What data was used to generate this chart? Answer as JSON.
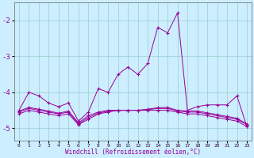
{
  "background_color": "#cceeff",
  "grid_color": "#99cccc",
  "line_color": "#990099",
  "xlim": [
    -0.5,
    23.5
  ],
  "ylim": [
    -5.35,
    -1.5
  ],
  "yticks": [
    -5,
    -4,
    -3,
    -2
  ],
  "xlabel": "Windchill (Refroidissement éolien,°C)",
  "hours": [
    0,
    1,
    2,
    3,
    4,
    5,
    6,
    7,
    8,
    9,
    10,
    11,
    12,
    13,
    14,
    15,
    16,
    17,
    18,
    19,
    20,
    21,
    22,
    23
  ],
  "line1": [
    -4.5,
    -4.0,
    -4.1,
    -4.3,
    -4.4,
    -4.3,
    -4.8,
    -4.55,
    -3.9,
    -4.0,
    -3.5,
    -3.3,
    -3.5,
    -3.2,
    -2.2,
    -2.35,
    -1.8,
    -4.5,
    -4.4,
    -4.35,
    -4.35,
    -4.35,
    -4.1,
    -4.95
  ],
  "line2": [
    -4.6,
    -4.5,
    -4.55,
    -4.6,
    -4.65,
    -4.6,
    -4.9,
    -4.75,
    -4.6,
    -4.55,
    -4.5,
    -4.5,
    -4.5,
    -4.5,
    -4.5,
    -4.5,
    -4.55,
    -4.6,
    -4.6,
    -4.65,
    -4.7,
    -4.75,
    -4.8,
    -4.95
  ],
  "line3": [
    -4.55,
    -4.45,
    -4.5,
    -4.55,
    -4.6,
    -4.55,
    -4.88,
    -4.7,
    -4.58,
    -4.52,
    -4.5,
    -4.5,
    -4.5,
    -4.48,
    -4.45,
    -4.45,
    -4.52,
    -4.55,
    -4.55,
    -4.6,
    -4.65,
    -4.7,
    -4.75,
    -4.9
  ],
  "line4": [
    -4.52,
    -4.42,
    -4.47,
    -4.52,
    -4.58,
    -4.52,
    -4.85,
    -4.65,
    -4.55,
    -4.5,
    -4.5,
    -4.5,
    -4.5,
    -4.47,
    -4.43,
    -4.42,
    -4.5,
    -4.52,
    -4.52,
    -4.57,
    -4.62,
    -4.67,
    -4.72,
    -4.88
  ]
}
